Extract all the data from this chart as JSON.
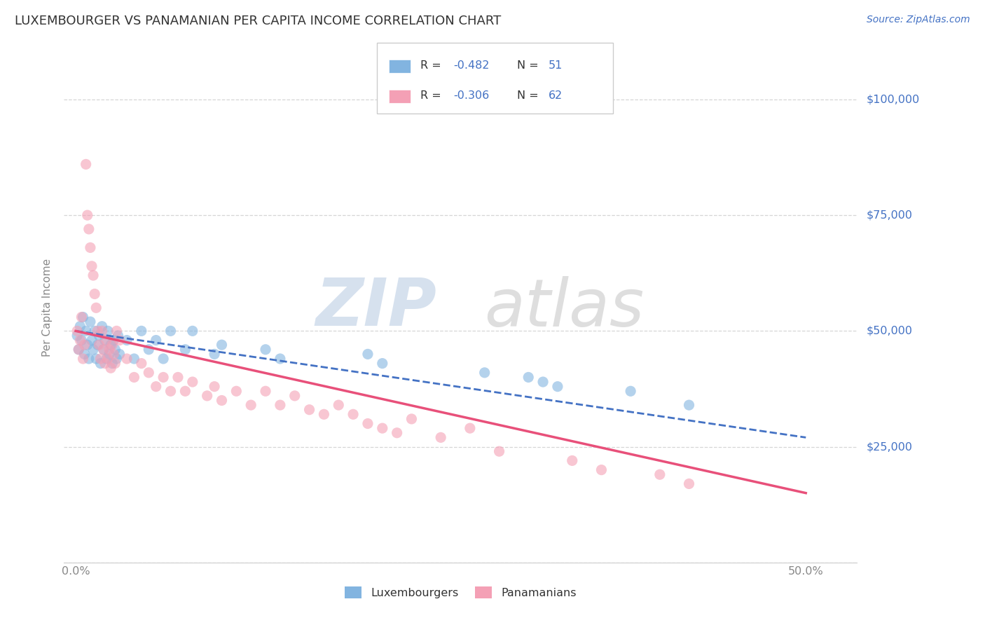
{
  "title": "LUXEMBOURGER VS PANAMANIAN PER CAPITA INCOME CORRELATION CHART",
  "source": "Source: ZipAtlas.com",
  "ylabel": "Per Capita Income",
  "x_tick_labels_show": [
    "0.0%",
    "50.0%"
  ],
  "x_ticks_show": [
    0.0,
    0.5
  ],
  "y_ticks": [
    0,
    25000,
    50000,
    75000,
    100000
  ],
  "y_tick_labels": [
    "",
    "$25,000",
    "$50,000",
    "$75,000",
    "$100,000"
  ],
  "xlim": [
    -0.008,
    0.535
  ],
  "ylim": [
    5000,
    110000
  ],
  "blue_color": "#82b4e0",
  "pink_color": "#f4a0b5",
  "blue_line_color": "#4472c4",
  "pink_line_color": "#e8507a",
  "axis_label_color": "#4472c4",
  "text_color_dark": "#333333",
  "text_color_mid": "#888888",
  "grid_color": "#cccccc",
  "legend_label1": "Luxembourgers",
  "legend_label2": "Panamanians",
  "background_color": "#ffffff",
  "blue_scatter_x": [
    0.001,
    0.002,
    0.003,
    0.004,
    0.005,
    0.006,
    0.007,
    0.008,
    0.009,
    0.01,
    0.011,
    0.012,
    0.013,
    0.014,
    0.015,
    0.016,
    0.017,
    0.018,
    0.019,
    0.02,
    0.021,
    0.022,
    0.023,
    0.024,
    0.025,
    0.026,
    0.027,
    0.028,
    0.029,
    0.03,
    0.035,
    0.04,
    0.045,
    0.05,
    0.055,
    0.06,
    0.065,
    0.075,
    0.08,
    0.095,
    0.1,
    0.13,
    0.14,
    0.2,
    0.21,
    0.28,
    0.31,
    0.32,
    0.33,
    0.38,
    0.42
  ],
  "blue_scatter_y": [
    49000,
    46000,
    51000,
    48000,
    53000,
    45000,
    50000,
    47000,
    44000,
    52000,
    48000,
    46000,
    50000,
    44000,
    47000,
    49000,
    43000,
    51000,
    46000,
    48000,
    44000,
    50000,
    45000,
    47000,
    43000,
    48000,
    46000,
    44000,
    49000,
    45000,
    48000,
    44000,
    50000,
    46000,
    48000,
    44000,
    50000,
    46000,
    50000,
    45000,
    47000,
    46000,
    44000,
    45000,
    43000,
    41000,
    40000,
    39000,
    38000,
    37000,
    34000
  ],
  "pink_scatter_x": [
    0.001,
    0.002,
    0.003,
    0.004,
    0.005,
    0.006,
    0.007,
    0.008,
    0.009,
    0.01,
    0.011,
    0.012,
    0.013,
    0.014,
    0.015,
    0.016,
    0.017,
    0.018,
    0.019,
    0.02,
    0.021,
    0.022,
    0.023,
    0.024,
    0.025,
    0.026,
    0.027,
    0.028,
    0.03,
    0.035,
    0.04,
    0.045,
    0.05,
    0.055,
    0.06,
    0.065,
    0.07,
    0.075,
    0.08,
    0.09,
    0.095,
    0.1,
    0.11,
    0.12,
    0.13,
    0.14,
    0.15,
    0.16,
    0.17,
    0.18,
    0.19,
    0.2,
    0.21,
    0.22,
    0.23,
    0.25,
    0.27,
    0.29,
    0.34,
    0.36,
    0.4,
    0.42
  ],
  "pink_scatter_y": [
    50000,
    46000,
    48000,
    53000,
    44000,
    47000,
    86000,
    75000,
    72000,
    68000,
    64000,
    62000,
    58000,
    55000,
    50000,
    47000,
    44000,
    50000,
    46000,
    43000,
    48000,
    44000,
    46000,
    42000,
    47000,
    45000,
    43000,
    50000,
    48000,
    44000,
    40000,
    43000,
    41000,
    38000,
    40000,
    37000,
    40000,
    37000,
    39000,
    36000,
    38000,
    35000,
    37000,
    34000,
    37000,
    34000,
    36000,
    33000,
    32000,
    34000,
    32000,
    30000,
    29000,
    28000,
    31000,
    27000,
    29000,
    24000,
    22000,
    20000,
    19000,
    17000
  ]
}
